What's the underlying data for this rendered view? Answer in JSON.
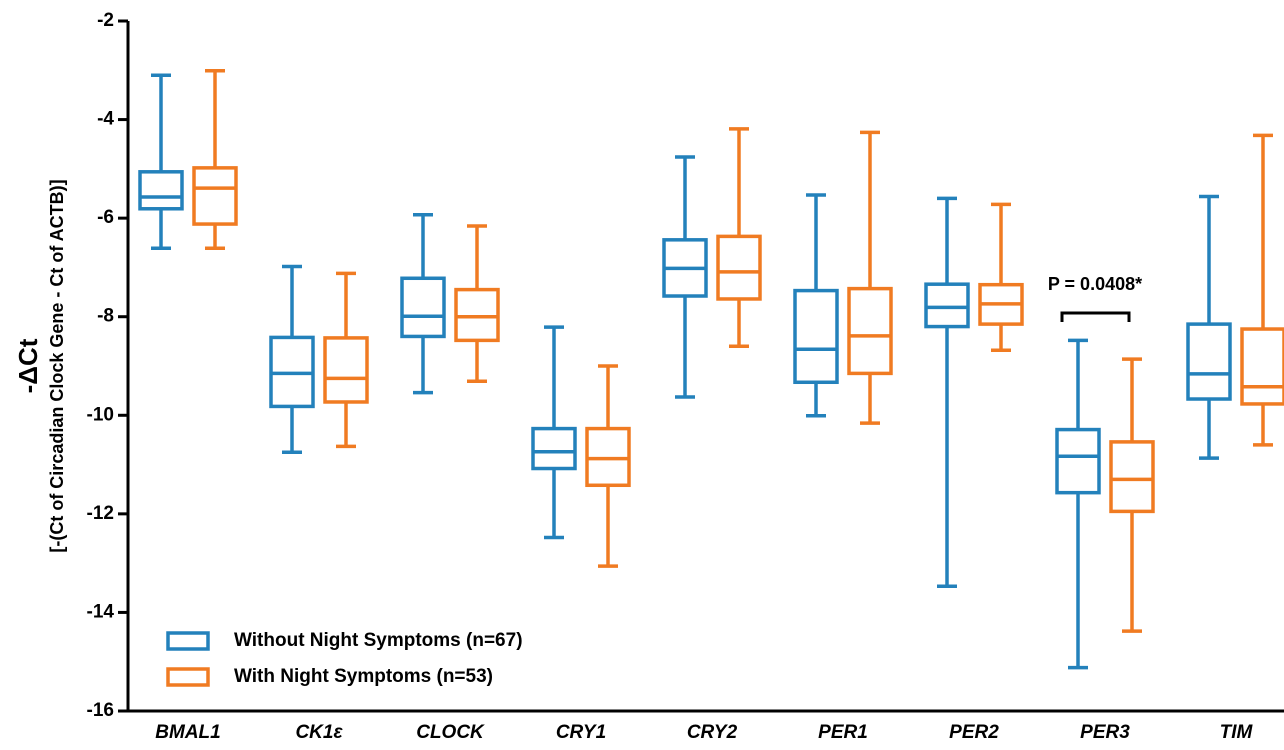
{
  "chart_data": {
    "type": "box",
    "y_label": "-ΔCt",
    "y_sublabel": "[-(Ct of Circadian Clock Gene - Ct of ACTB)]",
    "categories": [
      "BMAL1",
      "CK1ε",
      "CLOCK",
      "CRY1",
      "CRY2",
      "PER1",
      "PER2",
      "PER3",
      "TIM"
    ],
    "ylim": [
      -16,
      -2
    ],
    "yticks": [
      -16,
      -14,
      -12,
      -10,
      -8,
      -6,
      -4,
      -2
    ],
    "series": [
      {
        "name": "Without Night Symptoms (n=67)",
        "color": "#2381bb",
        "max": [
          -3.1,
          -6.98,
          -5.93,
          -8.21,
          -4.76,
          -5.53,
          -5.6,
          -8.48,
          -5.56
        ],
        "q3": [
          -5.06,
          -8.42,
          -7.22,
          -10.27,
          -6.44,
          -7.47,
          -7.34,
          -10.29,
          -8.15
        ],
        "median": [
          -5.57,
          -9.15,
          -7.99,
          -10.74,
          -7.02,
          -8.66,
          -7.81,
          -10.83,
          -9.16
        ],
        "q1": [
          -5.81,
          -9.82,
          -8.4,
          -11.08,
          -7.58,
          -9.33,
          -8.2,
          -11.57,
          -9.67
        ],
        "min": [
          -6.61,
          -10.75,
          -9.54,
          -12.48,
          -9.63,
          -10.01,
          -13.47,
          -15.12,
          -10.87
        ]
      },
      {
        "name": "With Night Symptoms (n=53)",
        "color": "#f07b22",
        "max": [
          -3.01,
          -7.12,
          -6.16,
          -9.0,
          -4.19,
          -4.26,
          -5.72,
          -8.86,
          -4.32
        ],
        "q3": [
          -4.98,
          -8.43,
          -7.45,
          -10.27,
          -6.37,
          -7.43,
          -7.35,
          -10.54,
          -8.25
        ],
        "median": [
          -5.39,
          -9.25,
          -8.0,
          -10.88,
          -7.09,
          -8.39,
          -7.74,
          -11.3,
          -9.42
        ],
        "q1": [
          -6.12,
          -9.73,
          -8.48,
          -11.42,
          -7.64,
          -9.15,
          -8.15,
          -11.95,
          -9.77
        ],
        "min": [
          -6.61,
          -10.63,
          -9.31,
          -13.06,
          -8.6,
          -10.16,
          -8.68,
          -14.38,
          -10.6
        ]
      }
    ],
    "annotation": "P = 0.0408*"
  }
}
